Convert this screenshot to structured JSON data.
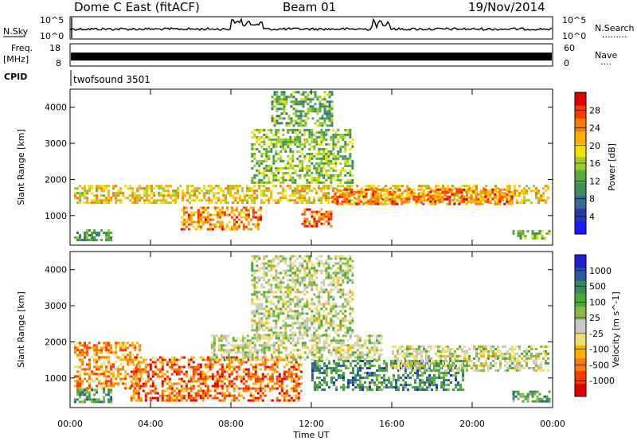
{
  "header": {
    "station": "Dome C East (fitACF)",
    "beam": "Beam 01",
    "date": "19/Nov/2014"
  },
  "noise_panel": {
    "left_label": "N.Sky",
    "right_label": "N.Search",
    "right_label_dots": "·········",
    "left_ticks": [
      "10^5",
      "10^0"
    ],
    "right_ticks": [
      "10^5",
      "10^0"
    ]
  },
  "freq_panel": {
    "left_label_line1": "Freq.",
    "left_label_line2": "[MHz]",
    "right_label": "Nave",
    "right_label_dots": "····",
    "left_ticks": [
      "18",
      "8"
    ],
    "right_ticks": [
      "60",
      "0"
    ]
  },
  "cpid": {
    "label": "CPID",
    "program": "twofsound 3501"
  },
  "chart_data": [
    {
      "type": "heatmap",
      "title": "",
      "xlabel": "Time UT",
      "ylabel": "Slant Range [km]",
      "xlim": [
        0,
        24
      ],
      "ylim": [
        180,
        4500
      ],
      "x_tick_labels": [
        "00:00",
        "04:00",
        "08:00",
        "12:00",
        "16:00",
        "20:00",
        "00:00"
      ],
      "x_ticks_hours": [
        0,
        4,
        8,
        12,
        16,
        20,
        24
      ],
      "y_ticks": [
        1000,
        2000,
        3000,
        4000
      ],
      "colorbar": {
        "label": "Power [dB]",
        "tick_labels": [
          "4",
          "8",
          "12",
          "16",
          "20",
          "24",
          "28"
        ],
        "range": [
          0,
          30
        ],
        "colors": [
          "#1a1aff",
          "#2a3aa8",
          "#3a6a9a",
          "#3f8f5a",
          "#5aab3c",
          "#9ccc2c",
          "#f0e000",
          "#ffb000",
          "#ff7a00",
          "#ff3a00",
          "#e00000"
        ]
      },
      "bands": [
        {
          "t0": 0.2,
          "t1": 23.8,
          "r0": 1350,
          "r1": 1850,
          "level": 0.62
        },
        {
          "t0": 0.2,
          "t1": 2.0,
          "r0": 350,
          "r1": 620,
          "level": 0.35
        },
        {
          "t0": 5.5,
          "t1": 9.5,
          "r0": 650,
          "r1": 1250,
          "level": 0.75
        },
        {
          "t0": 11.5,
          "t1": 13.0,
          "r0": 700,
          "r1": 1200,
          "level": 0.8
        },
        {
          "t0": 13.0,
          "t1": 22.0,
          "r0": 1300,
          "r1": 1750,
          "level": 0.78
        },
        {
          "t0": 9.0,
          "t1": 14.0,
          "r0": 1900,
          "r1": 3400,
          "level": 0.45
        },
        {
          "t0": 10.0,
          "t1": 13.0,
          "r0": 3500,
          "r1": 4450,
          "level": 0.4
        },
        {
          "t0": 22.0,
          "t1": 23.9,
          "r0": 350,
          "r1": 600,
          "level": 0.45
        }
      ]
    },
    {
      "type": "heatmap",
      "title": "",
      "xlabel": "Time UT",
      "ylabel": "Slant Range [km]",
      "xlim": [
        0,
        24
      ],
      "ylim": [
        180,
        4500
      ],
      "x_tick_labels": [
        "00:00",
        "04:00",
        "08:00",
        "12:00",
        "16:00",
        "20:00",
        "00:00"
      ],
      "x_ticks_hours": [
        0,
        4,
        8,
        12,
        16,
        20,
        24
      ],
      "y_ticks": [
        1000,
        2000,
        3000,
        4000
      ],
      "colorbar": {
        "label": "Velocity [m s^-1]",
        "tick_labels": [
          "1000",
          "500",
          "100",
          "25",
          "-25",
          "-100",
          "-500",
          "-1000"
        ],
        "range": [
          -1000,
          1000
        ],
        "colors": [
          "#e00000",
          "#ff3a00",
          "#ff7a00",
          "#ffb000",
          "#f0e070",
          "#c8c8c8",
          "#8ab84a",
          "#4aa83a",
          "#3a8a5a",
          "#2a5a9a",
          "#2020d0"
        ]
      },
      "bands": [
        {
          "t0": 0.2,
          "t1": 3.5,
          "r0": 700,
          "r1": 2000,
          "level": 0.28
        },
        {
          "t0": 3.0,
          "t1": 11.5,
          "r0": 350,
          "r1": 1600,
          "level": 0.2
        },
        {
          "t0": 7.0,
          "t1": 15.5,
          "r0": 1500,
          "r1": 2200,
          "level": 0.5
        },
        {
          "t0": 9.0,
          "t1": 14.0,
          "r0": 2200,
          "r1": 4400,
          "level": 0.52
        },
        {
          "t0": 12.0,
          "t1": 19.5,
          "r0": 700,
          "r1": 1500,
          "level": 0.75
        },
        {
          "t0": 16.0,
          "t1": 23.8,
          "r0": 1200,
          "r1": 1900,
          "level": 0.5
        },
        {
          "t0": 0.2,
          "t1": 2.0,
          "r0": 350,
          "r1": 700,
          "level": 0.72
        },
        {
          "t0": 22.0,
          "t1": 23.9,
          "r0": 350,
          "r1": 650,
          "level": 0.7
        }
      ]
    }
  ]
}
